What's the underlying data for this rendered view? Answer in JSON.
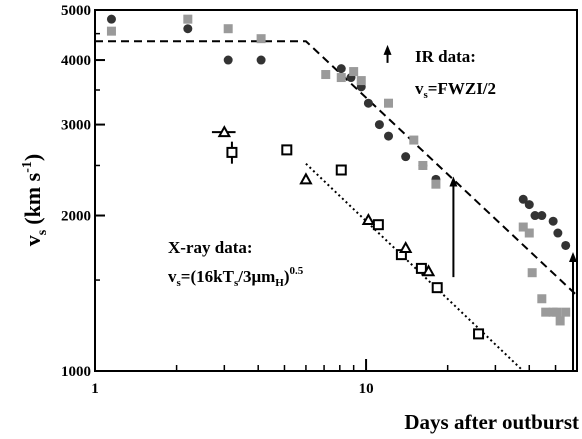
{
  "chart_data": {
    "type": "scatter",
    "xlabel": "Days after outburst",
    "ylabel": "v",
    "ylabel_sub": "s",
    "ylabel_units": "(km s",
    "ylabel_units_sup": "-1",
    "ylabel_units_close": ")",
    "x_scale": "log",
    "y_scale": "log",
    "xlim": [
      1,
      60
    ],
    "ylim": [
      1000,
      5000
    ],
    "x_ticks": [
      1,
      10
    ],
    "x_tick_labels": [
      "1",
      "10"
    ],
    "y_ticks": [
      1000,
      2000,
      3000,
      4000,
      5000
    ],
    "y_tick_labels": [
      "1000",
      "2000",
      "3000",
      "4000",
      "5000"
    ],
    "grid": false,
    "annotations": {
      "ir_title": "IR data:",
      "ir_formula_v": "v",
      "ir_formula_sub": "s",
      "ir_formula_rest": "=FWZI/2",
      "xray_title": "X-ray data:",
      "xray_formula_v": "v",
      "xray_formula_sub": "s",
      "xray_formula_mid": "=(16kT",
      "xray_formula_sub2": "s",
      "xray_formula_mid2": "/3μm",
      "xray_formula_sub3": "H",
      "xray_formula_end": ")",
      "xray_formula_sup": "0.5"
    },
    "series": [
      {
        "marker": "circle",
        "color": "#333333",
        "points": [
          [
            1.15,
            4800
          ],
          [
            2.2,
            4600
          ],
          [
            3.1,
            4000
          ],
          [
            4.1,
            4000
          ],
          [
            8.1,
            3850
          ],
          [
            8.8,
            3700
          ],
          [
            9.6,
            3550
          ],
          [
            10.2,
            3300
          ],
          [
            11.2,
            3000
          ],
          [
            12.1,
            2850
          ],
          [
            14.0,
            2600
          ],
          [
            16.2,
            2500
          ],
          [
            18.1,
            2350
          ],
          [
            38.0,
            2150
          ],
          [
            40.0,
            2100
          ],
          [
            42.0,
            2000
          ],
          [
            44.5,
            2000
          ],
          [
            49.0,
            1950
          ],
          [
            51.0,
            1850
          ],
          [
            54.5,
            1750
          ]
        ]
      },
      {
        "marker": "square",
        "color": "#9a9a9a",
        "points": [
          [
            1.15,
            4550
          ],
          [
            2.2,
            4800
          ],
          [
            3.1,
            4600
          ],
          [
            4.1,
            4400
          ],
          [
            7.1,
            3750
          ],
          [
            8.1,
            3700
          ],
          [
            9.0,
            3800
          ],
          [
            9.6,
            3650
          ],
          [
            12.1,
            3300
          ],
          [
            15.0,
            2800
          ],
          [
            16.2,
            2500
          ],
          [
            18.1,
            2300
          ],
          [
            38.0,
            1900
          ],
          [
            40.0,
            1850
          ],
          [
            41.0,
            1550
          ],
          [
            44.5,
            1380
          ],
          [
            46.0,
            1300
          ],
          [
            49.0,
            1300
          ],
          [
            50.5,
            1300
          ],
          [
            52.0,
            1250
          ],
          [
            54.5,
            1300
          ]
        ]
      },
      {
        "marker": "open-square",
        "color": "#000000",
        "points": [
          [
            3.2,
            2650
          ],
          [
            5.1,
            2680
          ],
          [
            8.1,
            2450
          ],
          [
            11.1,
            1920
          ],
          [
            13.5,
            1680
          ],
          [
            16.0,
            1580
          ],
          [
            18.3,
            1450
          ],
          [
            26.0,
            1180
          ]
        ]
      },
      {
        "marker": "open-triangle",
        "color": "#000000",
        "points": [
          [
            3.0,
            2900
          ],
          [
            6.0,
            2350
          ],
          [
            10.2,
            1960
          ],
          [
            14.0,
            1730
          ],
          [
            17.0,
            1560
          ]
        ]
      }
    ],
    "error_bars": [
      {
        "x": 3.0,
        "y": 2900,
        "xlow": 2.7,
        "xhigh": 3.3,
        "ylow": 2900,
        "yhigh": 2900
      },
      {
        "x": 3.2,
        "y": 2650,
        "xlow": 3.2,
        "xhigh": 3.2,
        "ylow": 2520,
        "yhigh": 2780
      }
    ],
    "lower_limits": [
      {
        "x": 12.0,
        "y_from": 3950,
        "y_to": 4280
      },
      {
        "x": 21.0,
        "y_from": 1520,
        "y_to": 2380
      },
      {
        "x": 58.0,
        "y_from": 1000,
        "y_to": 1700
      }
    ],
    "lines": [
      {
        "style": "dashed",
        "points": [
          [
            1,
            4350
          ],
          [
            6.0,
            4350
          ],
          [
            60,
            1400
          ]
        ]
      },
      {
        "style": "dotted",
        "points": [
          [
            6.0,
            2520
          ],
          [
            38.0,
            1000
          ]
        ]
      }
    ]
  }
}
